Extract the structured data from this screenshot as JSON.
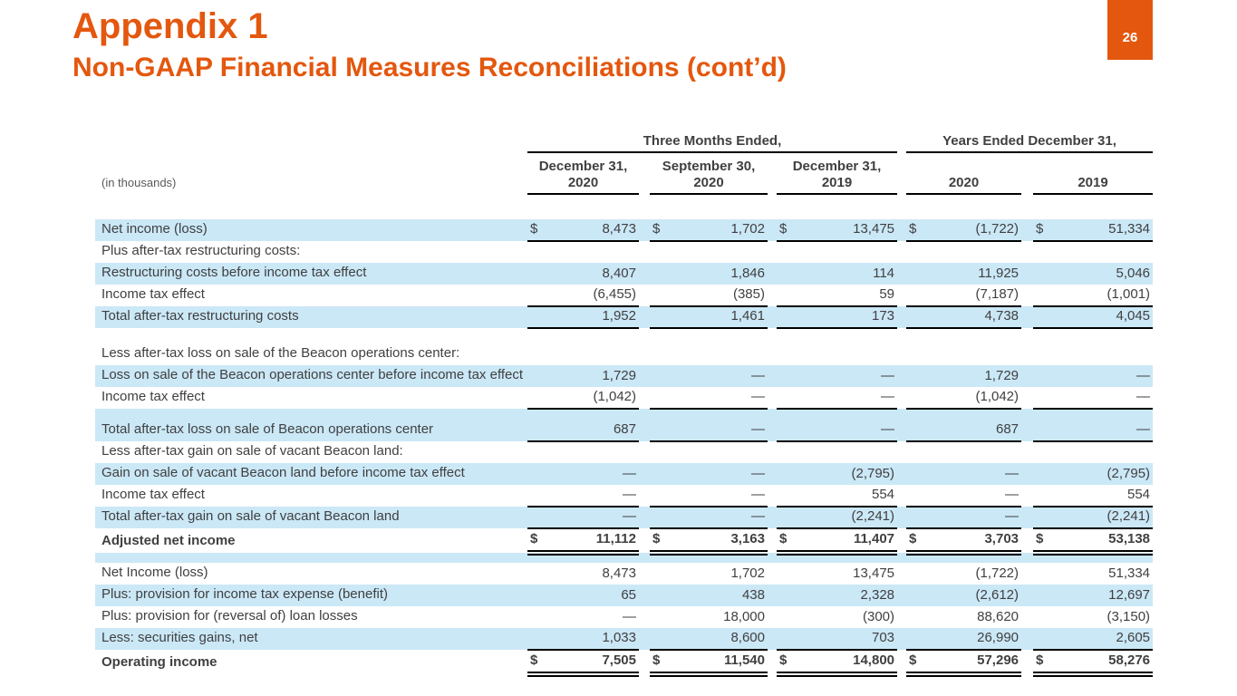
{
  "colors": {
    "accent_orange": "#E4570E",
    "row_highlight_blue": "#CBE8F7",
    "text_gray": "#404040"
  },
  "header": {
    "title": "Appendix 1",
    "subtitle": "Non-GAAP Financial Measures Reconciliations (cont’d)",
    "page_number": "26"
  },
  "table": {
    "units_label": "(in thousands)",
    "col_groups": [
      {
        "label": "Three Months Ended,",
        "columns": [
          "December 31, 2020",
          "September 30, 2020",
          "December 31, 2019"
        ]
      },
      {
        "label": "Years Ended December 31,",
        "columns": [
          "2020",
          "2019"
        ]
      }
    ],
    "rows": [
      {
        "type": "spacer",
        "height": 28,
        "highlight": false
      },
      {
        "label": "Net income (loss)",
        "dollar": true,
        "values": [
          "8,473",
          "1,702",
          "13,475",
          "(1,722)",
          "51,334"
        ],
        "highlight": true,
        "underline": "single"
      },
      {
        "label": "Plus after-tax restructuring costs:",
        "values": null,
        "highlight": false
      },
      {
        "label": "Restructuring costs before income tax effect",
        "values": [
          "8,407",
          "1,846",
          "114",
          "11,925",
          "5,046"
        ],
        "highlight": true
      },
      {
        "label": "Income tax effect",
        "values": [
          "(6,455)",
          "(385)",
          "59",
          "(7,187)",
          "(1,001)"
        ],
        "highlight": false,
        "underline": "single"
      },
      {
        "label": "Total after-tax restructuring costs",
        "values": [
          "1,952",
          "1,461",
          "173",
          "4,738",
          "4,045"
        ],
        "highlight": true,
        "underline": "single"
      },
      {
        "type": "spacer",
        "height": 17,
        "highlight": false
      },
      {
        "label": "Less after-tax loss on sale of the Beacon operations center:",
        "values": null,
        "highlight": false
      },
      {
        "label": "Loss on sale of the Beacon operations center before income tax effect",
        "values": [
          "1,729",
          "—",
          "—",
          "1,729",
          "—"
        ],
        "highlight": true
      },
      {
        "label": "Income tax effect",
        "values": [
          "(1,042)",
          "—",
          "—",
          "(1,042)",
          "—"
        ],
        "highlight": false,
        "underline": "single"
      },
      {
        "label": "Total  after-tax loss on sale of Beacon operations center",
        "values": [
          "687",
          "—",
          "—",
          "687",
          "—"
        ],
        "highlight": true,
        "underline": "single",
        "pad_top": true
      },
      {
        "label": "Less after-tax gain on sale of vacant Beacon land:",
        "values": null,
        "highlight": false
      },
      {
        "label": "Gain on sale of vacant Beacon land before income tax effect",
        "values": [
          "—",
          "—",
          "(2,795)",
          "—",
          "(2,795)"
        ],
        "highlight": true
      },
      {
        "label": "Income tax effect",
        "values": [
          "—",
          "—",
          "554",
          "—",
          "554"
        ],
        "highlight": false,
        "underline": "single"
      },
      {
        "label": "Total after-tax gain on sale of vacant Beacon land",
        "values": [
          "—",
          "—",
          "(2,241)",
          "—",
          "(2,241)"
        ],
        "highlight": true,
        "underline": "single"
      },
      {
        "label": "Adjusted net income",
        "dollar": true,
        "values": [
          "11,112",
          "3,163",
          "11,407",
          "3,703",
          "53,138"
        ],
        "highlight": false,
        "bold": true,
        "underline": "double"
      },
      {
        "type": "spacer",
        "height": 11,
        "highlight": true
      },
      {
        "label": "Net Income (loss)",
        "values": [
          "8,473",
          "1,702",
          "13,475",
          "(1,722)",
          "51,334"
        ],
        "highlight": false
      },
      {
        "label": "Plus: provision for income tax expense (benefit)",
        "values": [
          "65",
          "438",
          "2,328",
          "(2,612)",
          "12,697"
        ],
        "highlight": true
      },
      {
        "label": "Plus: provision for (reversal of) loan losses",
        "values": [
          "—",
          "18,000",
          "(300)",
          "88,620",
          "(3,150)"
        ],
        "highlight": false
      },
      {
        "label": "Less: securities gains, net",
        "values": [
          "1,033",
          "8,600",
          "703",
          "26,990",
          "2,605"
        ],
        "highlight": true,
        "underline": "single"
      },
      {
        "label": "Operating income",
        "dollar": true,
        "values": [
          "7,505",
          "11,540",
          "14,800",
          "57,296",
          "58,276"
        ],
        "highlight": false,
        "bold": true,
        "underline": "double"
      }
    ]
  }
}
